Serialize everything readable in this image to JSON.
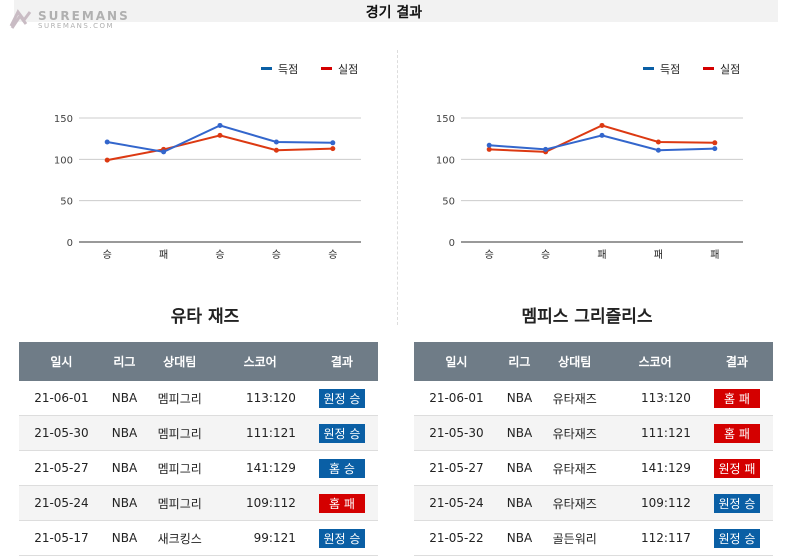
{
  "header": {
    "title": "경기 결과",
    "logo_main": "SUREMANS",
    "logo_sub": "SUREMANS.COM"
  },
  "legend": {
    "scored": "득점",
    "conceded": "실점"
  },
  "colors": {
    "scored": "#3366cc",
    "conceded": "#dc3912",
    "win": "#0a5fa5",
    "loss": "#d40000"
  },
  "chart_data": [
    {
      "type": "line",
      "categories": [
        "승",
        "패",
        "승",
        "승",
        "승"
      ],
      "ylim": [
        0,
        150
      ],
      "yticks": [
        0,
        50,
        100,
        150
      ],
      "series": [
        {
          "name": "득점",
          "values": [
            121,
            109,
            141,
            121,
            120
          ]
        },
        {
          "name": "실점",
          "values": [
            99,
            112,
            129,
            111,
            113
          ]
        }
      ],
      "legend": "top-right"
    },
    {
      "type": "line",
      "categories": [
        "승",
        "승",
        "패",
        "패",
        "패"
      ],
      "ylim": [
        0,
        150
      ],
      "yticks": [
        0,
        50,
        100,
        150
      ],
      "series": [
        {
          "name": "득점",
          "values": [
            117,
            112,
            129,
            111,
            113
          ]
        },
        {
          "name": "실점",
          "values": [
            112,
            109,
            141,
            121,
            120
          ]
        }
      ],
      "legend": "top-right"
    }
  ],
  "teams": [
    {
      "name": "유타 재즈",
      "rows": [
        {
          "date": "21-06-01",
          "league": "NBA",
          "opponent": "멤피그리",
          "score": "113:120",
          "result": "원정 승",
          "win": true
        },
        {
          "date": "21-05-30",
          "league": "NBA",
          "opponent": "멤피그리",
          "score": "111:121",
          "result": "원정 승",
          "win": true
        },
        {
          "date": "21-05-27",
          "league": "NBA",
          "opponent": "멤피그리",
          "score": "141:129",
          "result": "홈 승",
          "win": true
        },
        {
          "date": "21-05-24",
          "league": "NBA",
          "opponent": "멤피그리",
          "score": "109:112",
          "result": "홈 패",
          "win": false
        },
        {
          "date": "21-05-17",
          "league": "NBA",
          "opponent": "새크킹스",
          "score": "99:121",
          "result": "원정 승",
          "win": true
        }
      ]
    },
    {
      "name": "멤피스 그리즐리스",
      "rows": [
        {
          "date": "21-06-01",
          "league": "NBA",
          "opponent": "유타재즈",
          "score": "113:120",
          "result": "홈 패",
          "win": false
        },
        {
          "date": "21-05-30",
          "league": "NBA",
          "opponent": "유타재즈",
          "score": "111:121",
          "result": "홈 패",
          "win": false
        },
        {
          "date": "21-05-27",
          "league": "NBA",
          "opponent": "유타재즈",
          "score": "141:129",
          "result": "원정 패",
          "win": false
        },
        {
          "date": "21-05-24",
          "league": "NBA",
          "opponent": "유타재즈",
          "score": "109:112",
          "result": "원정 승",
          "win": true
        },
        {
          "date": "21-05-22",
          "league": "NBA",
          "opponent": "골든워리",
          "score": "112:117",
          "result": "원정 승",
          "win": true
        }
      ]
    }
  ],
  "table_headers": [
    "일시",
    "리그",
    "상대팀",
    "스코어",
    "결과"
  ]
}
